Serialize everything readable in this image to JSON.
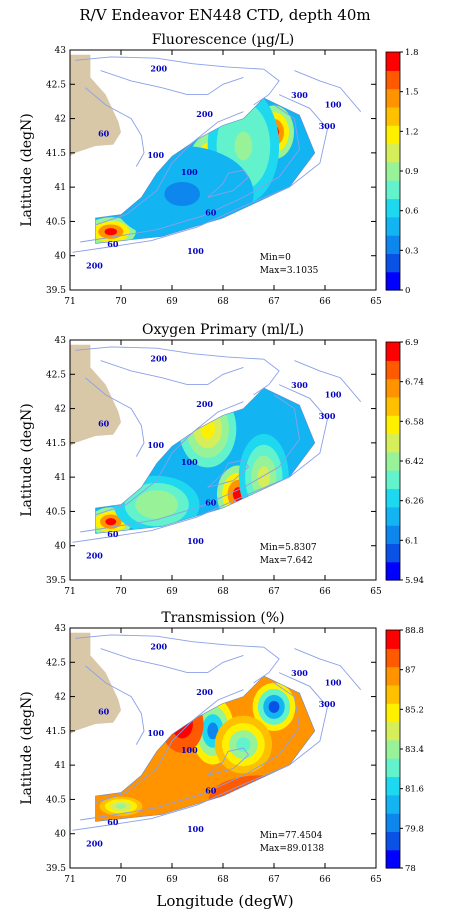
{
  "figure": {
    "title": "R/V Endeavor EN448 CTD, depth 40m",
    "xlabel": "Longitude (degW)"
  },
  "colors": {
    "land": "#d8c8a8",
    "isobath": "#8aa0e8",
    "contour_label": "#0000c0",
    "colormap": [
      "#0000ff",
      "#0a52e6",
      "#0d86ee",
      "#12b4f2",
      "#1ed8f0",
      "#62f2cc",
      "#98f298",
      "#d6ee5a",
      "#fff000",
      "#ffc000",
      "#ff9400",
      "#ff5a00",
      "#ff0000"
    ]
  },
  "chart_data": [
    {
      "type": "heatmap",
      "title": "Fluorescence (µg/L)",
      "ylabel": "Latitude (degN)",
      "xlim": [
        71,
        65
      ],
      "ylim": [
        39.5,
        43
      ],
      "xticks": [
        "71",
        "70",
        "69",
        "68",
        "67",
        "66",
        "65"
      ],
      "yticks": [
        "39.5",
        "40",
        "40.5",
        "41",
        "41.5",
        "42",
        "42.5",
        "43"
      ],
      "colorbar": {
        "min": 0,
        "max": 1.8,
        "ticks": [
          "0",
          "0.3",
          "0.6",
          "0.9",
          "1.2",
          "1.5",
          "1.8"
        ]
      },
      "stats": [
        "Min=0",
        "Max=3.1035"
      ],
      "contour_labels": [
        "200",
        "300",
        "100",
        "200",
        "100",
        "300",
        "60",
        "100",
        "60",
        "60",
        "100",
        "200"
      ],
      "blobs": [
        {
          "lon": 68.2,
          "lat": 41.3,
          "value": 1.8,
          "rx": 0.35,
          "ry": 0.35
        },
        {
          "lon": 67.0,
          "lat": 41.8,
          "value": 1.8,
          "rx": 0.28,
          "ry": 0.28
        },
        {
          "lon": 70.2,
          "lat": 40.35,
          "value": 1.8,
          "rx": 0.35,
          "ry": 0.15
        },
        {
          "lon": 67.6,
          "lat": 41.6,
          "value": 0.9,
          "rx": 0.5,
          "ry": 0.6
        },
        {
          "lon": 68.8,
          "lat": 40.9,
          "value": 0.4,
          "rx": 1.0,
          "ry": 0.5
        }
      ]
    },
    {
      "type": "heatmap",
      "title": "Oxygen Primary (ml/L)",
      "ylabel": "Latitude (degN)",
      "xlim": [
        71,
        65
      ],
      "ylim": [
        39.5,
        43
      ],
      "xticks": [
        "71",
        "70",
        "69",
        "68",
        "67",
        "66",
        "65"
      ],
      "yticks": [
        "39.5",
        "40",
        "40.5",
        "41",
        "41.5",
        "42",
        "42.5",
        "43"
      ],
      "colorbar": {
        "min": 5.94,
        "max": 6.9,
        "ticks": [
          "5.94",
          "6.1",
          "6.26",
          "6.42",
          "6.58",
          "6.74",
          "6.9"
        ]
      },
      "stats": [
        "Min=5.8307",
        "Max=7.642"
      ],
      "contour_labels": [
        "200",
        "300",
        "100",
        "200",
        "100",
        "300",
        "60",
        "100",
        "60",
        "60",
        "100",
        "200"
      ],
      "blobs": [
        {
          "lon": 67.7,
          "lat": 40.75,
          "value": 6.9,
          "rx": 0.3,
          "ry": 0.3
        },
        {
          "lon": 70.2,
          "lat": 40.35,
          "value": 6.9,
          "rx": 0.3,
          "ry": 0.15
        },
        {
          "lon": 68.3,
          "lat": 41.7,
          "value": 6.6,
          "rx": 0.4,
          "ry": 0.4
        },
        {
          "lon": 67.2,
          "lat": 41.0,
          "value": 6.5,
          "rx": 0.35,
          "ry": 0.45
        },
        {
          "lon": 69.3,
          "lat": 40.6,
          "value": 6.45,
          "rx": 0.6,
          "ry": 0.3
        }
      ]
    },
    {
      "type": "heatmap",
      "title": "Transmission (%)",
      "ylabel": "Latitude (degN)",
      "xlim": [
        71,
        65
      ],
      "ylim": [
        39.5,
        43
      ],
      "xticks": [
        "71",
        "70",
        "69",
        "68",
        "67",
        "66",
        "65"
      ],
      "yticks": [
        "39.5",
        "40",
        "40.5",
        "41",
        "41.5",
        "42",
        "42.5",
        "43"
      ],
      "colorbar": {
        "min": 78,
        "max": 88.8,
        "ticks": [
          "78",
          "79.8",
          "81.6",
          "83.4",
          "85.2",
          "87",
          "88.8"
        ]
      },
      "stats": [
        "Min=77.4504",
        "Max=89.0138"
      ],
      "contour_labels": [
        "200",
        "300",
        "100",
        "200",
        "100",
        "300",
        "60",
        "100",
        "60",
        "60",
        "100",
        "200"
      ],
      "blobs": [
        {
          "lon": 68.2,
          "lat": 41.5,
          "value": 80,
          "rx": 0.3,
          "ry": 0.35
        },
        {
          "lon": 67.0,
          "lat": 41.85,
          "value": 79,
          "rx": 0.3,
          "ry": 0.25
        },
        {
          "lon": 67.6,
          "lat": 41.3,
          "value": 82.5,
          "rx": 0.4,
          "ry": 0.3
        },
        {
          "lon": 70.0,
          "lat": 40.4,
          "value": 83.5,
          "rx": 0.3,
          "ry": 0.1
        },
        {
          "lon": 68.8,
          "lat": 41.6,
          "value": 88.5,
          "rx": 0.3,
          "ry": 0.3
        },
        {
          "lon": 67.3,
          "lat": 40.5,
          "value": 88.7,
          "rx": 0.7,
          "ry": 0.25
        }
      ]
    }
  ]
}
